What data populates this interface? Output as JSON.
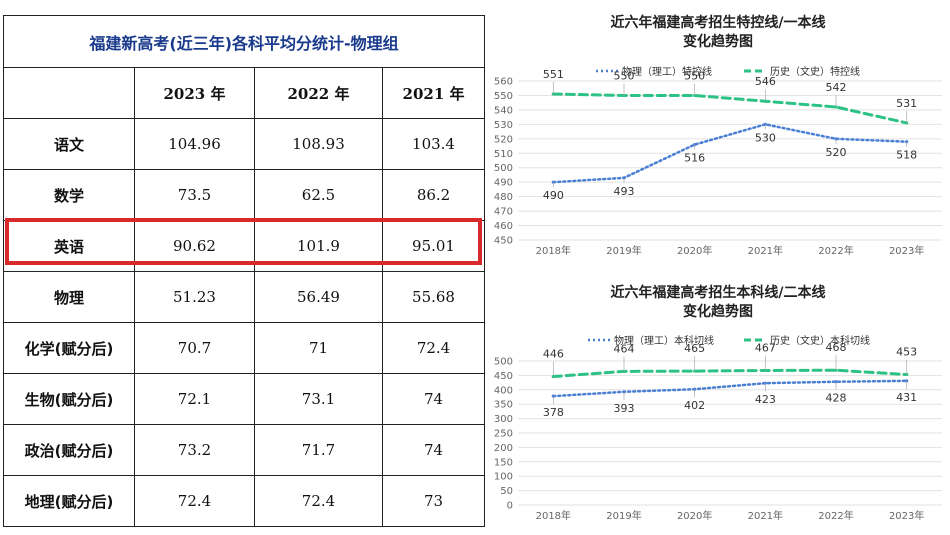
{
  "table": {
    "title": "福建新高考(近三年)各科平均分统计-物理组",
    "columns": [
      "",
      "2023 年",
      "2022 年",
      "2021 年"
    ],
    "rows": [
      {
        "subject": "语文",
        "values": [
          "104.96",
          "108.93",
          "103.4"
        ]
      },
      {
        "subject": "数学",
        "values": [
          "73.5",
          "62.5",
          "86.2"
        ]
      },
      {
        "subject": "英语",
        "values": [
          "90.62",
          "101.9",
          "95.01"
        ],
        "highlighted": true
      },
      {
        "subject": "物理",
        "values": [
          "51.23",
          "56.49",
          "55.68"
        ]
      },
      {
        "subject": "化学(赋分后)",
        "values": [
          "70.7",
          "71",
          "72.4"
        ]
      },
      {
        "subject": "生物(赋分后)",
        "values": [
          "72.1",
          "73.1",
          "74"
        ]
      },
      {
        "subject": "政治(赋分后)",
        "values": [
          "73.2",
          "71.7",
          "74"
        ]
      },
      {
        "subject": "地理(赋分后)",
        "values": [
          "72.4",
          "72.4",
          "73"
        ]
      }
    ],
    "highlight_color": "#d82a2a"
  },
  "chart_data": [
    {
      "type": "line",
      "title": "近六年福建高考招生特控线/一本线",
      "subtitle": "变化趋势图",
      "categories": [
        "2018年",
        "2019年",
        "2020年",
        "2021年",
        "2022年",
        "2023年"
      ],
      "series": [
        {
          "name": "物理（理工）特控线",
          "values": [
            490,
            493,
            516,
            530,
            520,
            518
          ],
          "color": "#4a7fd4",
          "style": "dotted"
        },
        {
          "name": "历史（文史）特控线",
          "values": [
            551,
            550,
            550,
            546,
            542,
            531
          ],
          "color": "#2cc285",
          "style": "dashed"
        }
      ],
      "ylim": [
        450,
        560
      ],
      "yticks": [
        450,
        460,
        470,
        480,
        490,
        500,
        510,
        520,
        530,
        540,
        550,
        560
      ],
      "grid": true,
      "legend": "top"
    },
    {
      "type": "line",
      "title": "近六年福建高考招生本科线/二本线",
      "subtitle": "变化趋势图",
      "categories": [
        "2018年",
        "2019年",
        "2020年",
        "2021年",
        "2022年",
        "2023年"
      ],
      "series": [
        {
          "name": "物理（理工）本科切线",
          "values": [
            378,
            393,
            402,
            423,
            428,
            431
          ],
          "color": "#4a7fd4",
          "style": "dotted"
        },
        {
          "name": "历史（文史）本科切线",
          "values": [
            446,
            464,
            465,
            467,
            468,
            453
          ],
          "color": "#2cc285",
          "style": "dashed"
        }
      ],
      "ylim": [
        0,
        500
      ],
      "yticks": [
        0,
        50,
        100,
        150,
        200,
        250,
        300,
        350,
        400,
        450,
        500
      ],
      "grid": true,
      "legend": "top"
    }
  ]
}
